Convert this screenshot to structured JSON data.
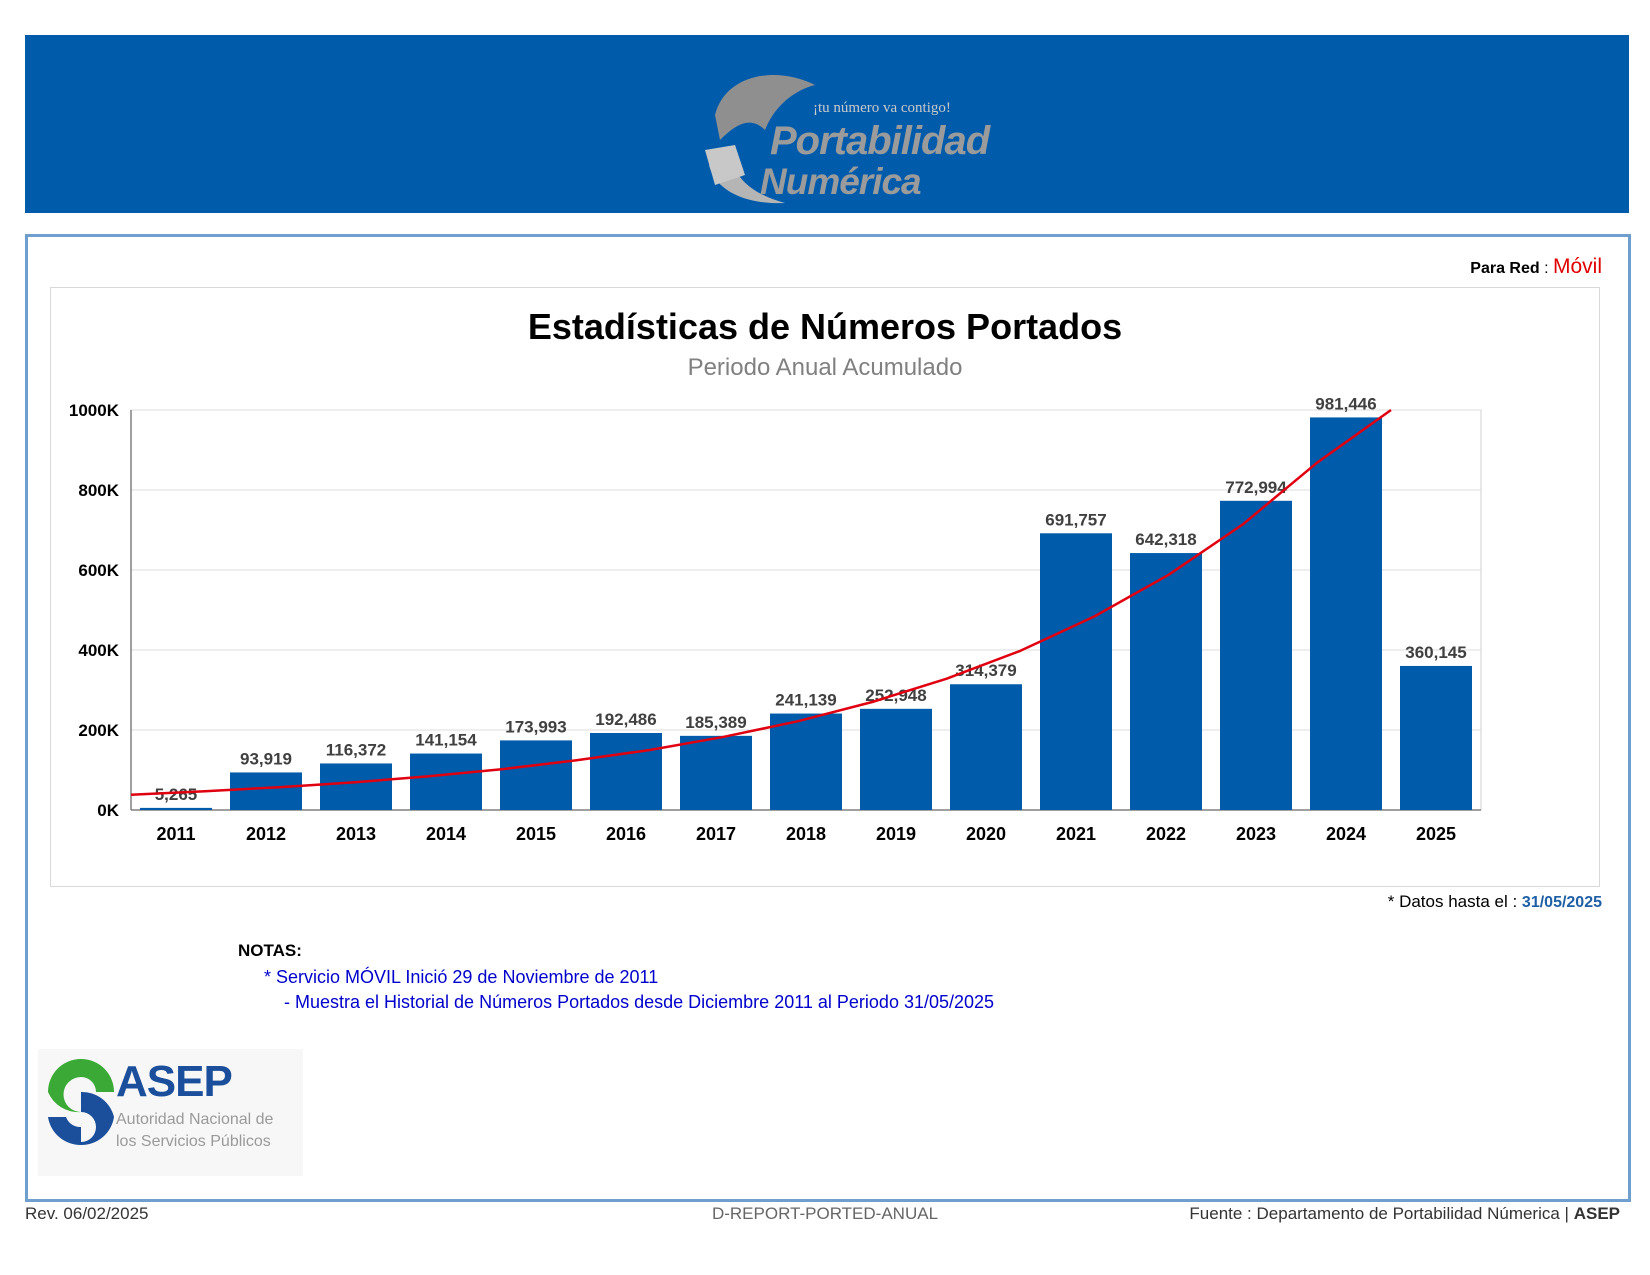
{
  "brand": {
    "colors": {
      "banner": "#005bab",
      "bar": "#005bab",
      "trend": "#e00010",
      "frame": "#6f9fce"
    },
    "logo_tagline": "¡tu número va contigo!",
    "logo_line1": "Portabilidad",
    "logo_line2": "Numérica"
  },
  "header": {
    "para_red_label": "Para Red",
    "para_red_sep": " : ",
    "para_red_value": "Móvil"
  },
  "chart_data": {
    "type": "bar",
    "title": "Estadísticas de Números Portados",
    "subtitle": "Periodo Anual Acumulado",
    "categories": [
      "2011",
      "2012",
      "2013",
      "2014",
      "2015",
      "2016",
      "2017",
      "2018",
      "2019",
      "2020",
      "2021",
      "2022",
      "2023",
      "2024",
      "2025"
    ],
    "values": [
      5265,
      93919,
      116372,
      141154,
      173993,
      192486,
      185389,
      241139,
      252948,
      314379,
      691757,
      642318,
      772994,
      981446,
      360145
    ],
    "value_labels": [
      "5,265",
      "93,919",
      "116,372",
      "141,154",
      "173,993",
      "192,486",
      "185,389",
      "241,139",
      "252,948",
      "314,379",
      "691,757",
      "642,318",
      "772,994",
      "981,446",
      "360,145"
    ],
    "trendline": {
      "type": "exponential",
      "values": [
        38000,
        47000,
        57000,
        69000,
        84000,
        102000,
        124000,
        150000,
        183000,
        222000,
        270000,
        328000,
        398000,
        484000,
        588000,
        714000,
        868000,
        1000000
      ]
    },
    "ylim": [
      0,
      1000000
    ],
    "yticks": [
      0,
      200000,
      400000,
      600000,
      800000,
      1000000
    ],
    "ytick_labels": [
      "0K",
      "200K",
      "400K",
      "600K",
      "800K",
      "1000K"
    ],
    "grid": true,
    "legend": "none"
  },
  "datos": {
    "label": "* Datos hasta el : ",
    "date": "31/05/2025"
  },
  "notes": {
    "heading": "NOTAS:",
    "line1": "* Servicio MÓVIL Inició 29 de Noviembre de 2011",
    "line2": "- Muestra el Historial de Números Portados desde Diciembre 2011 al Periodo 31/05/2025"
  },
  "asep": {
    "name": "ASEP",
    "sub1": "Autoridad Nacional de",
    "sub2": "los Servicios Públicos"
  },
  "footer": {
    "rev": "Rev. 06/02/2025",
    "report": "D-REPORT-PORTED-ANUAL",
    "source": "Fuente : Departamento de Portabilidad Númerica | ",
    "source_bold": "ASEP"
  }
}
